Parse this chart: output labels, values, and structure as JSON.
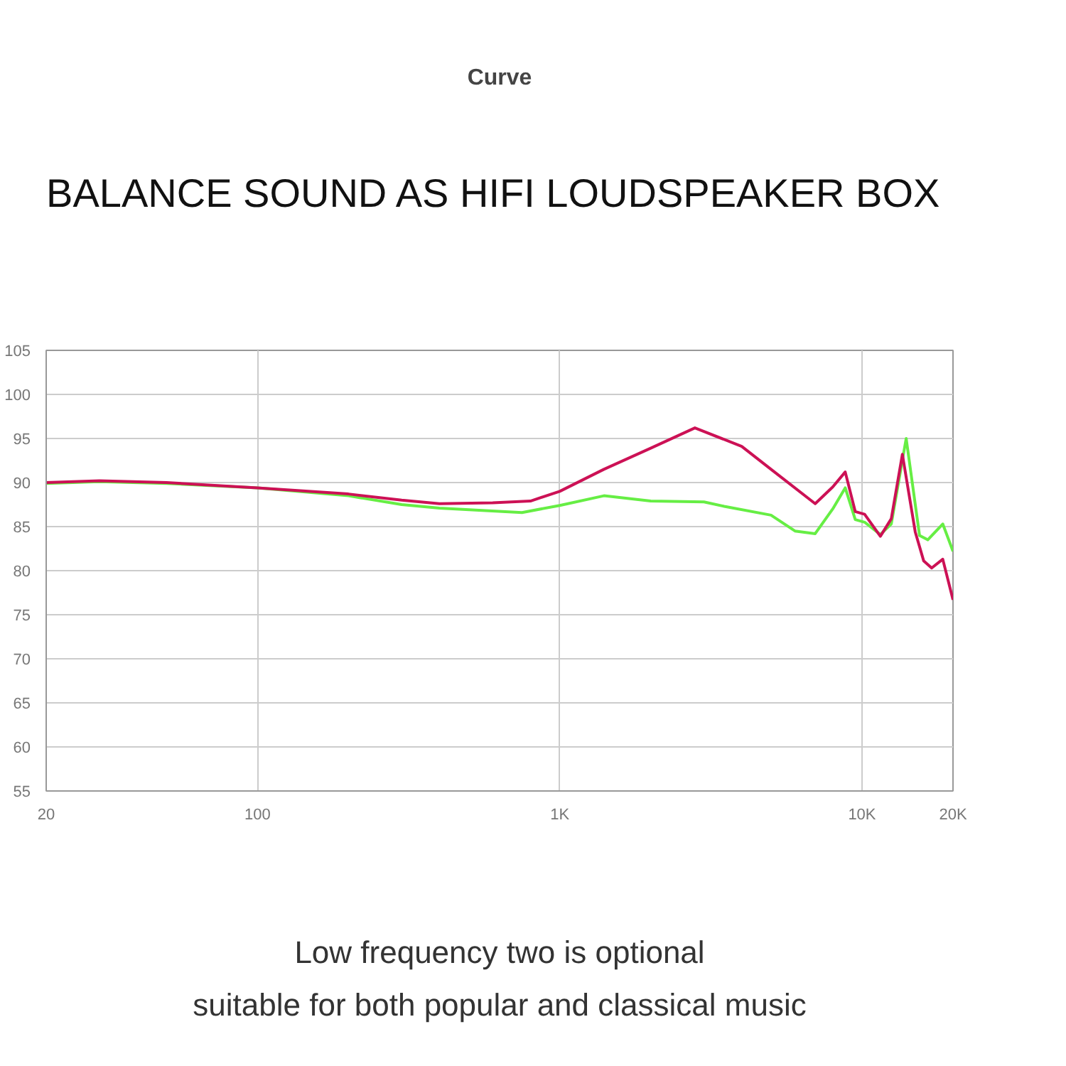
{
  "chart_data": {
    "type": "line",
    "title": "BALANCE SOUND AS  HIFI LOUDSPEAKER BOX",
    "subtitle": "Curve",
    "annotations": [
      "Low frequency two is optional",
      "suitable for both popular and classical music"
    ],
    "log": "x",
    "grid": true,
    "marker": "none",
    "line_style": "solid",
    "xlim": [
      20,
      20000
    ],
    "ylim": [
      55,
      105
    ],
    "xticks": [
      20,
      100,
      {
        "value": 1000,
        "label": "1K"
      },
      {
        "value": 10000,
        "label": "10K"
      },
      {
        "value": 20000,
        "label": "20K"
      }
    ],
    "yticks": [
      55,
      60,
      65,
      70,
      75,
      80,
      85,
      90,
      95,
      100,
      105
    ],
    "series": [
      {
        "color": "#66ee44",
        "x": [
          20,
          30,
          50,
          100,
          200,
          300,
          400,
          750,
          1000,
          1400,
          2000,
          3000,
          3500,
          5000,
          6000,
          7000,
          8000,
          8800,
          9500,
          10200,
          11500,
          12500,
          14000,
          15500,
          16500,
          18500,
          20000
        ],
        "values": [
          89.9,
          90.1,
          89.9,
          89.4,
          88.5,
          87.5,
          87.1,
          86.6,
          87.4,
          88.5,
          87.9,
          87.8,
          87.3,
          86.3,
          84.5,
          84.2,
          87.0,
          89.4,
          85.8,
          85.5,
          84.1,
          85.3,
          95.0,
          84.0,
          83.5,
          85.3,
          82.2
        ]
      },
      {
        "color": "#cc1155",
        "x": [
          20,
          30,
          50,
          100,
          200,
          300,
          400,
          600,
          800,
          1000,
          1400,
          2000,
          2800,
          4000,
          5000,
          7000,
          8000,
          8800,
          9500,
          10200,
          11500,
          12500,
          13600,
          15000,
          16000,
          17000,
          18500,
          20000
        ],
        "values": [
          90.0,
          90.2,
          90.0,
          89.4,
          88.7,
          88.0,
          87.6,
          87.7,
          87.9,
          89.0,
          91.5,
          93.9,
          96.2,
          94.1,
          91.5,
          87.6,
          89.5,
          91.2,
          86.7,
          86.4,
          83.9,
          85.9,
          93.2,
          84.4,
          81.1,
          80.3,
          81.3,
          76.7
        ]
      }
    ]
  }
}
